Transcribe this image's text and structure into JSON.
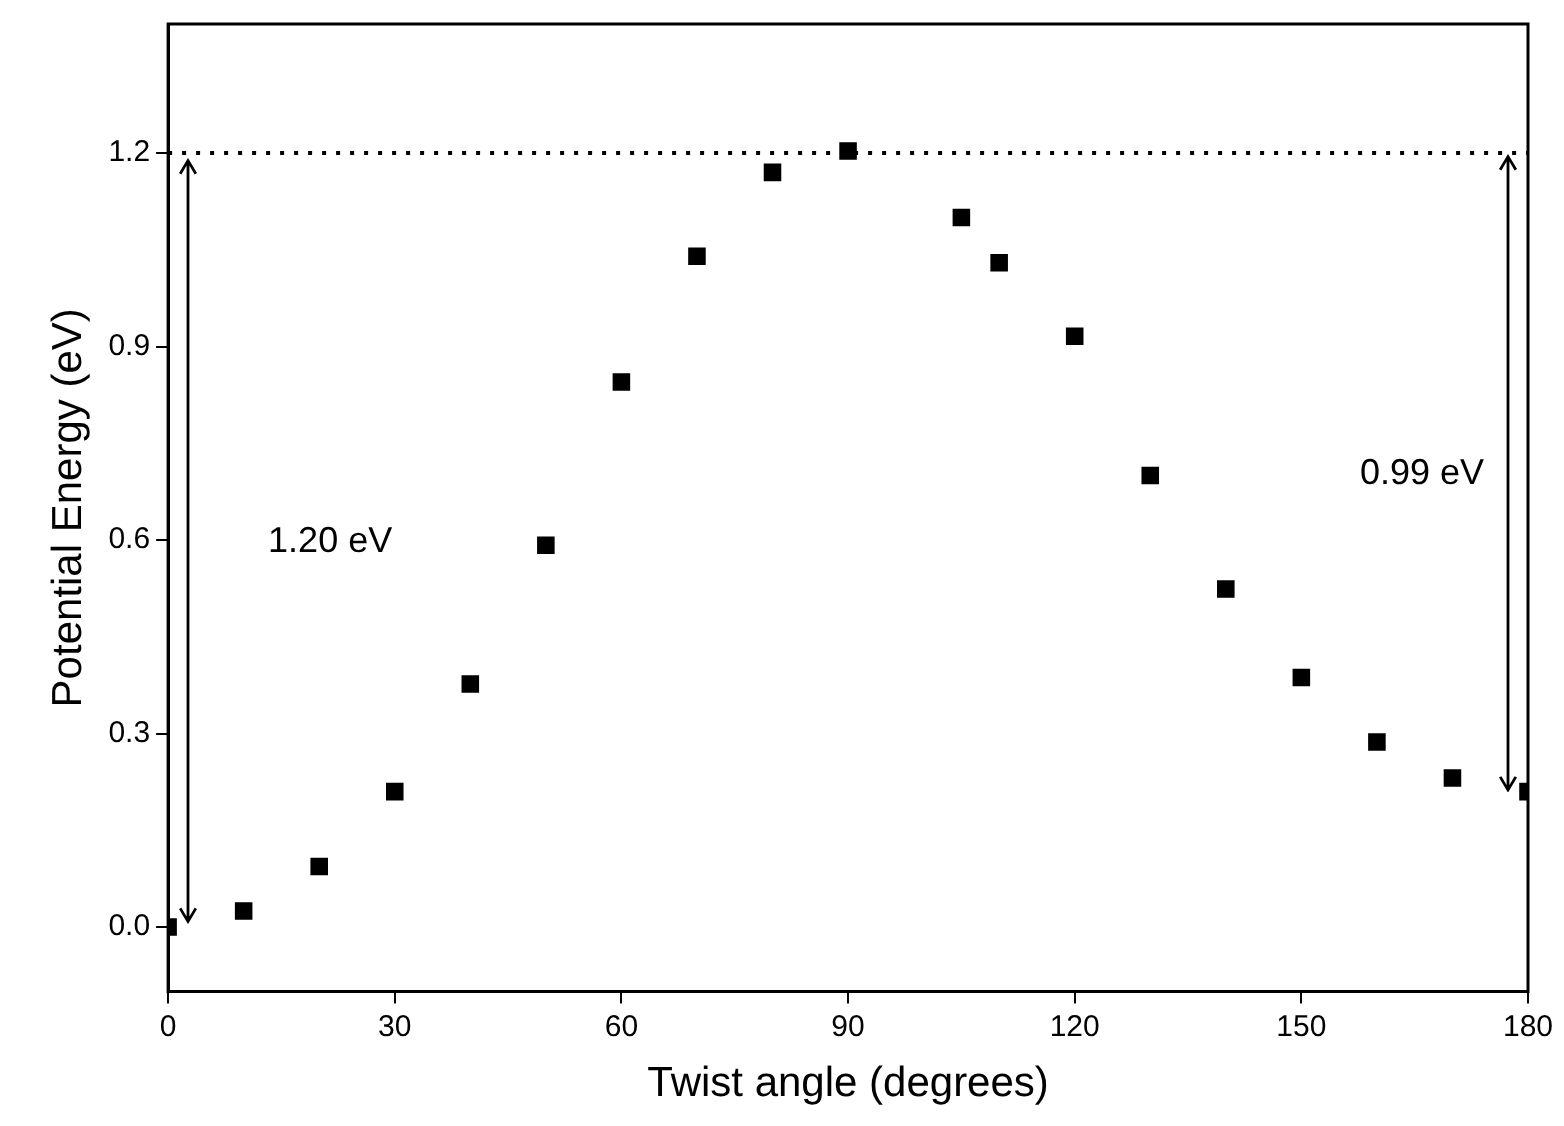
{
  "chart_data": {
    "type": "scatter",
    "xlabel": "Twist angle (degrees)",
    "ylabel": "Potential Energy (eV)",
    "x": [
      0,
      10,
      20,
      30,
      40,
      50,
      60,
      70,
      80,
      90,
      105,
      110,
      120,
      130,
      140,
      150,
      160,
      170,
      180
    ],
    "series": [
      {
        "color": "#000000",
        "values": [
          0,
          0.025,
          0.094,
          0.21,
          0.377,
          0.592,
          0.845,
          1.04,
          1.17,
          1.203,
          1.1,
          1.03,
          0.916,
          0.7,
          0.524,
          0.387,
          0.287,
          0.231,
          0.21
        ]
      }
    ],
    "xlim": [
      0,
      180
    ],
    "xticks": [
      0,
      30,
      60,
      90,
      120,
      150,
      180
    ],
    "ylim": [
      -0.1,
      1.4
    ],
    "yticks": [
      {
        "value": 0,
        "label": "0.0"
      },
      {
        "value": 0.3,
        "label": "0.3"
      },
      {
        "value": 0.6,
        "label": "0.6"
      },
      {
        "value": 0.9,
        "label": "0.9"
      },
      {
        "value": 1.2,
        "label": "1.2"
      }
    ],
    "ref_lines": [
      {
        "axis": "y",
        "value": 1.2,
        "color": "#000000",
        "line_style": "dotted"
      }
    ],
    "annotations": [
      "1.20 eV",
      "0.99 eV"
    ],
    "marker": "square",
    "grid": false,
    "legend": false
  }
}
